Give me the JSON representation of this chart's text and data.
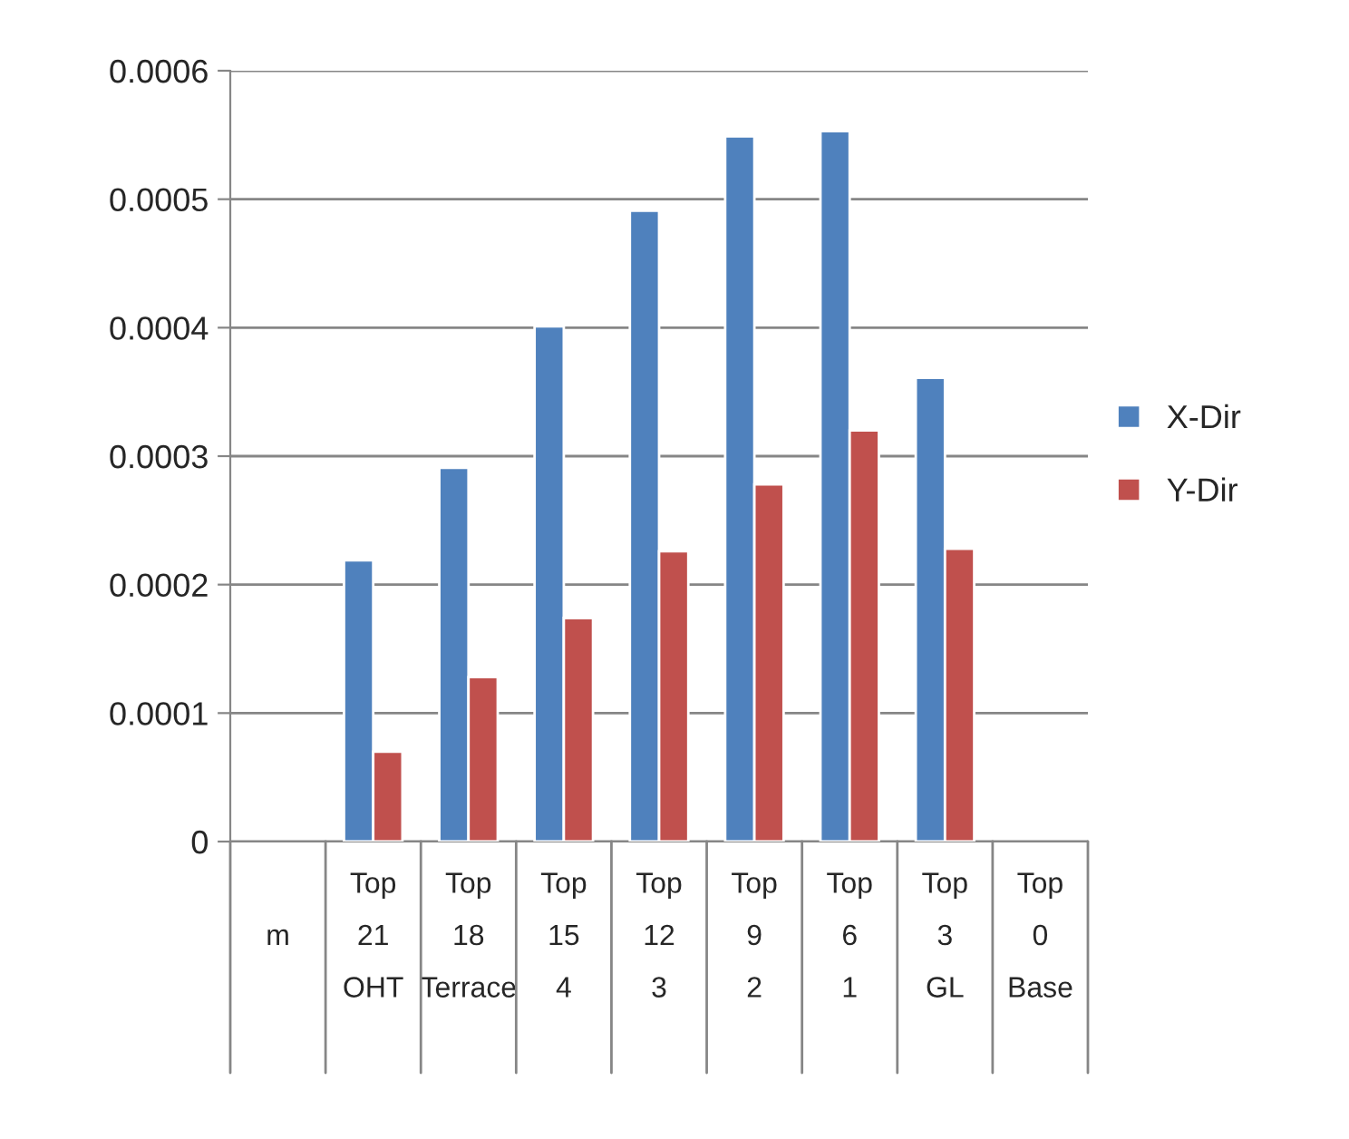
{
  "chart_data": {
    "type": "bar",
    "categories": [
      "\nm\n",
      "Top\n21\nOHT",
      "Top\n18\nTerrace",
      "Top\n15\n4",
      "Top\n12\n3",
      "Top\n9\n2",
      "Top\n6\n1",
      "Top\n3\nGL",
      "Top\n0\nBase"
    ],
    "series": [
      {
        "name": "X-Dir",
        "color": "#4f81bd",
        "values": [
          null,
          0.000219,
          0.000291,
          0.000401,
          0.000491,
          0.000549,
          0.000553,
          0.000361,
          null
        ]
      },
      {
        "name": "Y-Dir",
        "color": "#c0504d",
        "values": [
          null,
          7e-05,
          0.000128,
          0.000174,
          0.000226,
          0.000278,
          0.00032,
          0.000228,
          null
        ]
      }
    ],
    "ylim": [
      0,
      0.0006
    ],
    "yticks": [
      0,
      0.0001,
      0.0002,
      0.0003,
      0.0004,
      0.0005,
      0.0006
    ],
    "grid": "y",
    "legend": "right"
  }
}
